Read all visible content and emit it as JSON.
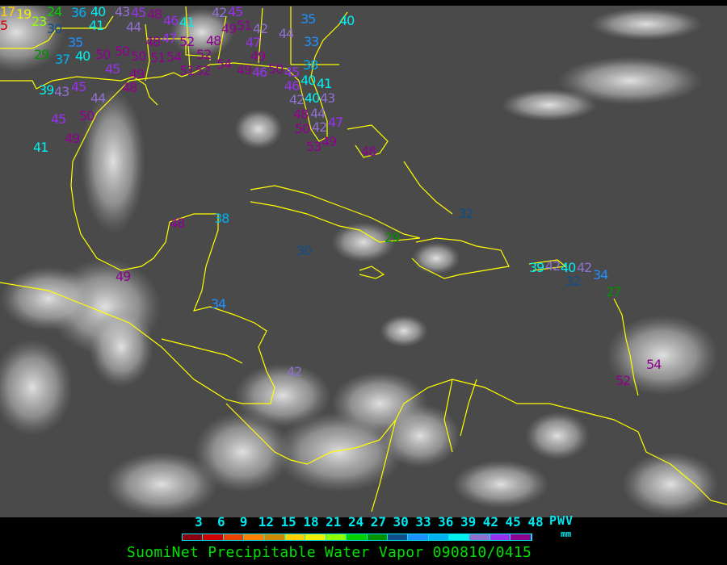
{
  "title": "SuomiNet Precipitable Water Vapor 090810/0415",
  "legend": {
    "unit_label": "PWV",
    "unit": "mm",
    "ticks": [
      "3",
      "6",
      "9",
      "12",
      "15",
      "18",
      "21",
      "24",
      "27",
      "30",
      "33",
      "36",
      "39",
      "42",
      "45",
      "48"
    ],
    "colors": [
      "#8b0010",
      "#d00000",
      "#f04000",
      "#ff8000",
      "#d08800",
      "#ffd000",
      "#f0f000",
      "#90ff00",
      "#00d000",
      "#009000",
      "#104e8b",
      "#1e90ff",
      "#00b0f0",
      "#00f0f0",
      "#9070d0",
      "#9a30f0",
      "#900090"
    ]
  },
  "map": {
    "background": "#4a4a4a",
    "coastline_color": "#ffff00",
    "stations": [
      "17",
      "5",
      "19",
      "24",
      "23",
      "30",
      "36",
      "40",
      "41",
      "43",
      "45",
      "48",
      "46",
      "44",
      "41",
      "42",
      "45",
      "51",
      "49",
      "42",
      "35",
      "40",
      "44",
      "33",
      "35",
      "29",
      "37",
      "40",
      "50",
      "50",
      "50",
      "51",
      "48",
      "47",
      "52",
      "54",
      "48",
      "47",
      "49",
      "52",
      "51",
      "52",
      "54",
      "49",
      "46",
      "50",
      "45",
      "46",
      "38",
      "40",
      "41",
      "42",
      "40",
      "45",
      "49",
      "48",
      "39",
      "43",
      "45",
      "44",
      "50",
      "45",
      "49",
      "41",
      "48",
      "44",
      "43",
      "42",
      "47",
      "50",
      "49",
      "53",
      "48",
      "32",
      "29",
      "48",
      "38",
      "30",
      "49",
      "34",
      "42",
      "39",
      "42",
      "40",
      "42",
      "32",
      "34",
      "27",
      "54",
      "52"
    ]
  }
}
